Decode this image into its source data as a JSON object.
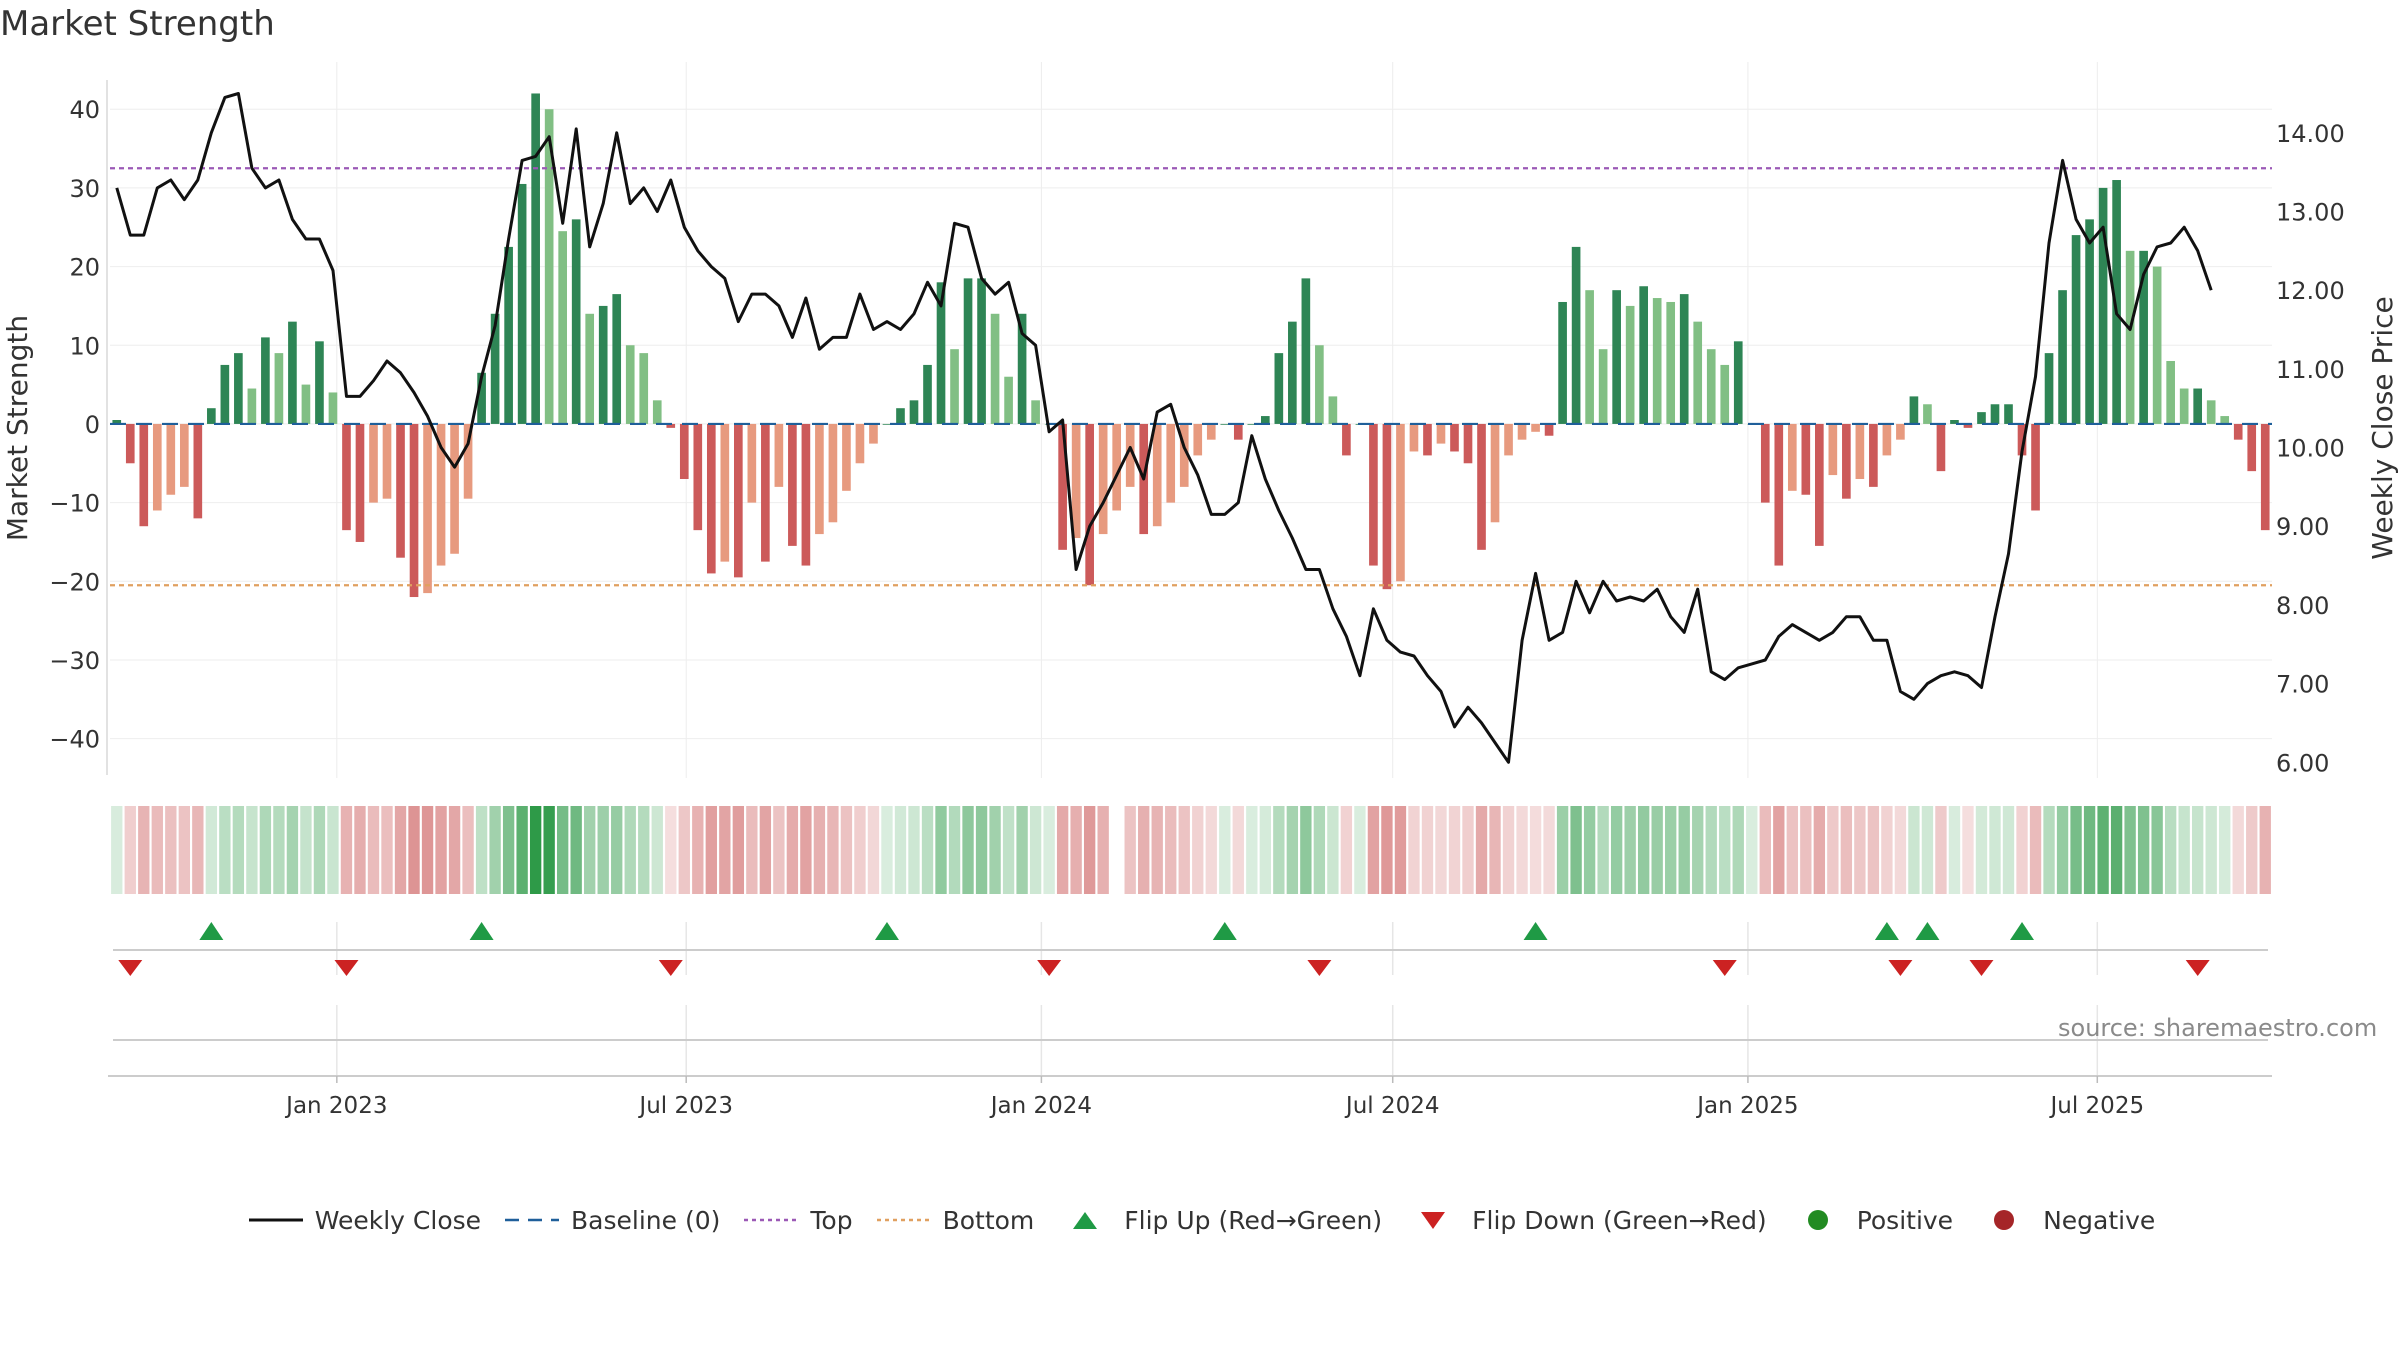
{
  "source_note": "source: sharemaestro.com",
  "colors": {
    "pos_strong": "#2e8555",
    "pos_light": "#81bf84",
    "neg_strong": "#cc5a5a",
    "neg_light": "#e79a7f",
    "top_line": "#9b59b6",
    "bottom_line": "#e0a060",
    "baseline": "#1f5f9a",
    "flip_up": "#1f9a45",
    "flip_down": "#cc2222",
    "price_line": "#111111"
  },
  "chart_data": {
    "type": "bar",
    "title": "Market Strength",
    "ylabel_left": "Market Strength",
    "ylabel_right": "Weekly Close Price",
    "ylim_left": [
      -45,
      46
    ],
    "ylim_right": [
      5.8,
      14.9
    ],
    "yticks_left": [
      "40",
      "30",
      "20",
      "10",
      "0",
      "−10",
      "−20",
      "−30",
      "−40"
    ],
    "yticks_right": [
      "14.00",
      "13.00",
      "12.00",
      "11.00",
      "10.00",
      "9.00",
      "8.00",
      "7.00",
      "6.00"
    ],
    "x_start": "2022-09-09",
    "x_step_days": 7,
    "x_ticks": [
      {
        "date": "2023-01-01",
        "label": "Jan 2023"
      },
      {
        "date": "2023-07-01",
        "label": "Jul 2023"
      },
      {
        "date": "2024-01-01",
        "label": "Jan 2024"
      },
      {
        "date": "2024-07-01",
        "label": "Jul 2024"
      },
      {
        "date": "2025-01-01",
        "label": "Jan 2025"
      },
      {
        "date": "2025-07-01",
        "label": "Jul 2025"
      }
    ],
    "top_level": 32.5,
    "bottom_level": -20.5,
    "strength": [
      0.5,
      -5,
      -13,
      -11,
      -9,
      -8,
      -12,
      2,
      7.5,
      9,
      4.5,
      11,
      9,
      13,
      5,
      10.5,
      4,
      -13.5,
      -15,
      -10,
      -9.5,
      -17,
      -22,
      -21.5,
      -18,
      -16.5,
      -9.5,
      6.5,
      14,
      22.5,
      30.5,
      42,
      40,
      24.5,
      26,
      14,
      15,
      16.5,
      10,
      9,
      3,
      -0.5,
      -7,
      -13.5,
      -19,
      -17.5,
      -19.5,
      -10,
      -17.5,
      -8,
      -15.5,
      -18,
      -14,
      -12.5,
      -8.5,
      -5,
      -2.5,
      0,
      2,
      3,
      7.5,
      18,
      9.5,
      18.5,
      18.5,
      14,
      6,
      14,
      3,
      0,
      -16,
      -14.5,
      -20.5,
      -14,
      -11,
      -8,
      -14,
      -13,
      -10,
      -8,
      -4,
      -2,
      0,
      -2,
      0,
      1,
      9,
      13,
      18.5,
      10,
      3.5,
      -4,
      0,
      -18,
      -21,
      -20,
      -3.5,
      -4,
      -2.5,
      -3.5,
      -5,
      -16,
      -12.5,
      -4,
      -2,
      -1,
      -1.5,
      15.5,
      22.5,
      17,
      9.5,
      17,
      15,
      17.5,
      16,
      15.5,
      16.5,
      13,
      9.5,
      7.5,
      10.5,
      0,
      -10,
      -18,
      -8.5,
      -9,
      -15.5,
      -6.5,
      -9.5,
      -7,
      -8,
      -4,
      -2,
      3.5,
      2.5,
      -6,
      0.5,
      -0.5,
      1.5,
      2.5,
      2.5,
      -4,
      -11,
      9,
      17,
      24,
      26,
      30,
      31,
      22,
      22,
      20,
      8,
      4.5,
      4.5,
      3,
      1,
      -2,
      -6,
      -13.5
    ],
    "weekly_close": [
      13.3,
      12.7,
      12.7,
      13.3,
      13.4,
      13.15,
      13.4,
      14.0,
      14.45,
      14.5,
      13.55,
      13.3,
      13.4,
      12.9,
      12.65,
      12.65,
      12.25,
      10.65,
      10.65,
      10.85,
      11.1,
      10.95,
      10.7,
      10.4,
      10.0,
      9.75,
      10.05,
      10.9,
      11.55,
      12.65,
      13.65,
      13.7,
      13.95,
      12.85,
      14.05,
      12.55,
      13.1,
      14.0,
      13.1,
      13.3,
      13.0,
      13.4,
      12.8,
      12.5,
      12.3,
      12.15,
      11.6,
      11.95,
      11.95,
      11.8,
      11.4,
      11.9,
      11.25,
      11.4,
      11.4,
      11.95,
      11.5,
      11.6,
      11.5,
      11.7,
      12.1,
      11.8,
      12.85,
      12.8,
      12.15,
      11.95,
      12.1,
      11.45,
      11.3,
      10.2,
      10.35,
      8.45,
      9.0,
      9.3,
      9.65,
      10.0,
      9.6,
      10.45,
      10.55,
      10.0,
      9.65,
      9.15,
      9.15,
      9.3,
      10.15,
      9.6,
      9.2,
      8.85,
      8.45,
      8.45,
      7.95,
      7.6,
      7.1,
      7.95,
      7.55,
      7.4,
      7.35,
      7.1,
      6.9,
      6.45,
      6.7,
      6.5,
      6.25,
      6.0,
      7.55,
      8.4,
      7.55,
      7.65,
      8.3,
      7.9,
      8.3,
      8.05,
      8.1,
      8.05,
      8.2,
      7.85,
      7.65,
      8.2,
      7.15,
      7.05,
      7.2,
      7.25,
      7.3,
      7.6,
      7.75,
      7.65,
      7.55,
      7.65,
      7.85,
      7.85,
      7.55,
      7.55,
      6.9,
      6.8,
      7.0,
      7.1,
      7.15,
      7.1,
      6.95,
      7.85,
      8.65,
      9.95,
      10.9,
      12.6,
      13.65,
      12.9,
      12.6,
      12.8,
      11.7,
      11.5,
      12.2,
      12.55,
      12.6,
      12.8,
      12.5,
      12.0
    ],
    "heatmap": {
      "label": "strength heat strip",
      "missing_indices": [
        74
      ]
    },
    "flip_up_indices": [
      7,
      27,
      57,
      82,
      105,
      131,
      134,
      141
    ],
    "flip_down_indices": [
      1,
      17,
      41,
      69,
      89,
      119,
      132,
      138,
      154
    ],
    "legend": [
      {
        "key": "line",
        "label": "Weekly Close"
      },
      {
        "key": "dash",
        "label": "Baseline (0)"
      },
      {
        "key": "dot-purple",
        "label": "Top"
      },
      {
        "key": "dot-orange",
        "label": "Bottom"
      },
      {
        "key": "tri-up",
        "label": "Flip Up (Red→Green)"
      },
      {
        "key": "tri-down",
        "label": "Flip Down (Green→Red)"
      },
      {
        "key": "dot-green",
        "label": "Positive"
      },
      {
        "key": "dot-red",
        "label": "Negative"
      }
    ],
    "grid": true,
    "legend_position": "bottom"
  }
}
